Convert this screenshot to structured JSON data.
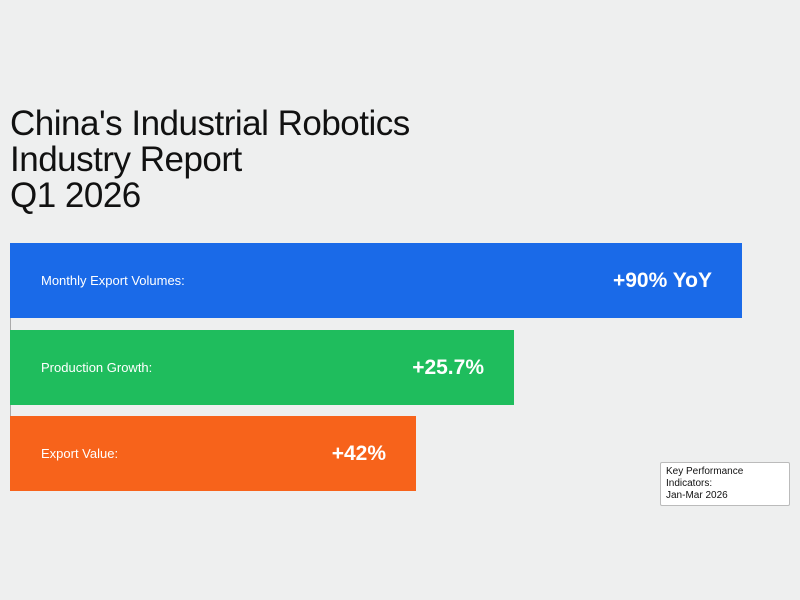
{
  "header": {
    "title_lines": [
      "China's Industrial Robotics",
      "Industry Report",
      "Q1 2026"
    ]
  },
  "rows": [
    {
      "label": "Monthly Export Volumes:",
      "value": "+90% YoY"
    },
    {
      "label": "Production Growth:",
      "value": "+25.7%"
    },
    {
      "label": "Export Value:",
      "value": "+42%"
    }
  ],
  "legend": {
    "lines": [
      "Key Performance Indicators:",
      "Jan-Mar 2026"
    ]
  }
}
